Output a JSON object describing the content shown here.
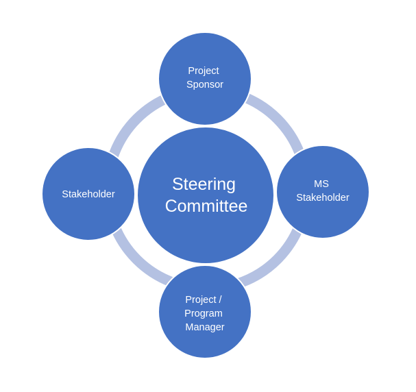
{
  "diagram": {
    "center": {
      "lines": [
        "Steering",
        "Committee"
      ]
    },
    "nodes": {
      "top": {
        "lines": [
          "Project",
          "Sponsor"
        ]
      },
      "right": {
        "lines": [
          "MS",
          "Stakeholder"
        ]
      },
      "bottom": {
        "lines": [
          "Project /",
          "Program",
          "Manager"
        ]
      },
      "left": {
        "lines": [
          "Stakeholder"
        ]
      }
    }
  },
  "colors": {
    "node_fill": "#4472C4",
    "node_stroke": "#ffffff",
    "ring": "#B4C1E2",
    "text": "#ffffff"
  }
}
